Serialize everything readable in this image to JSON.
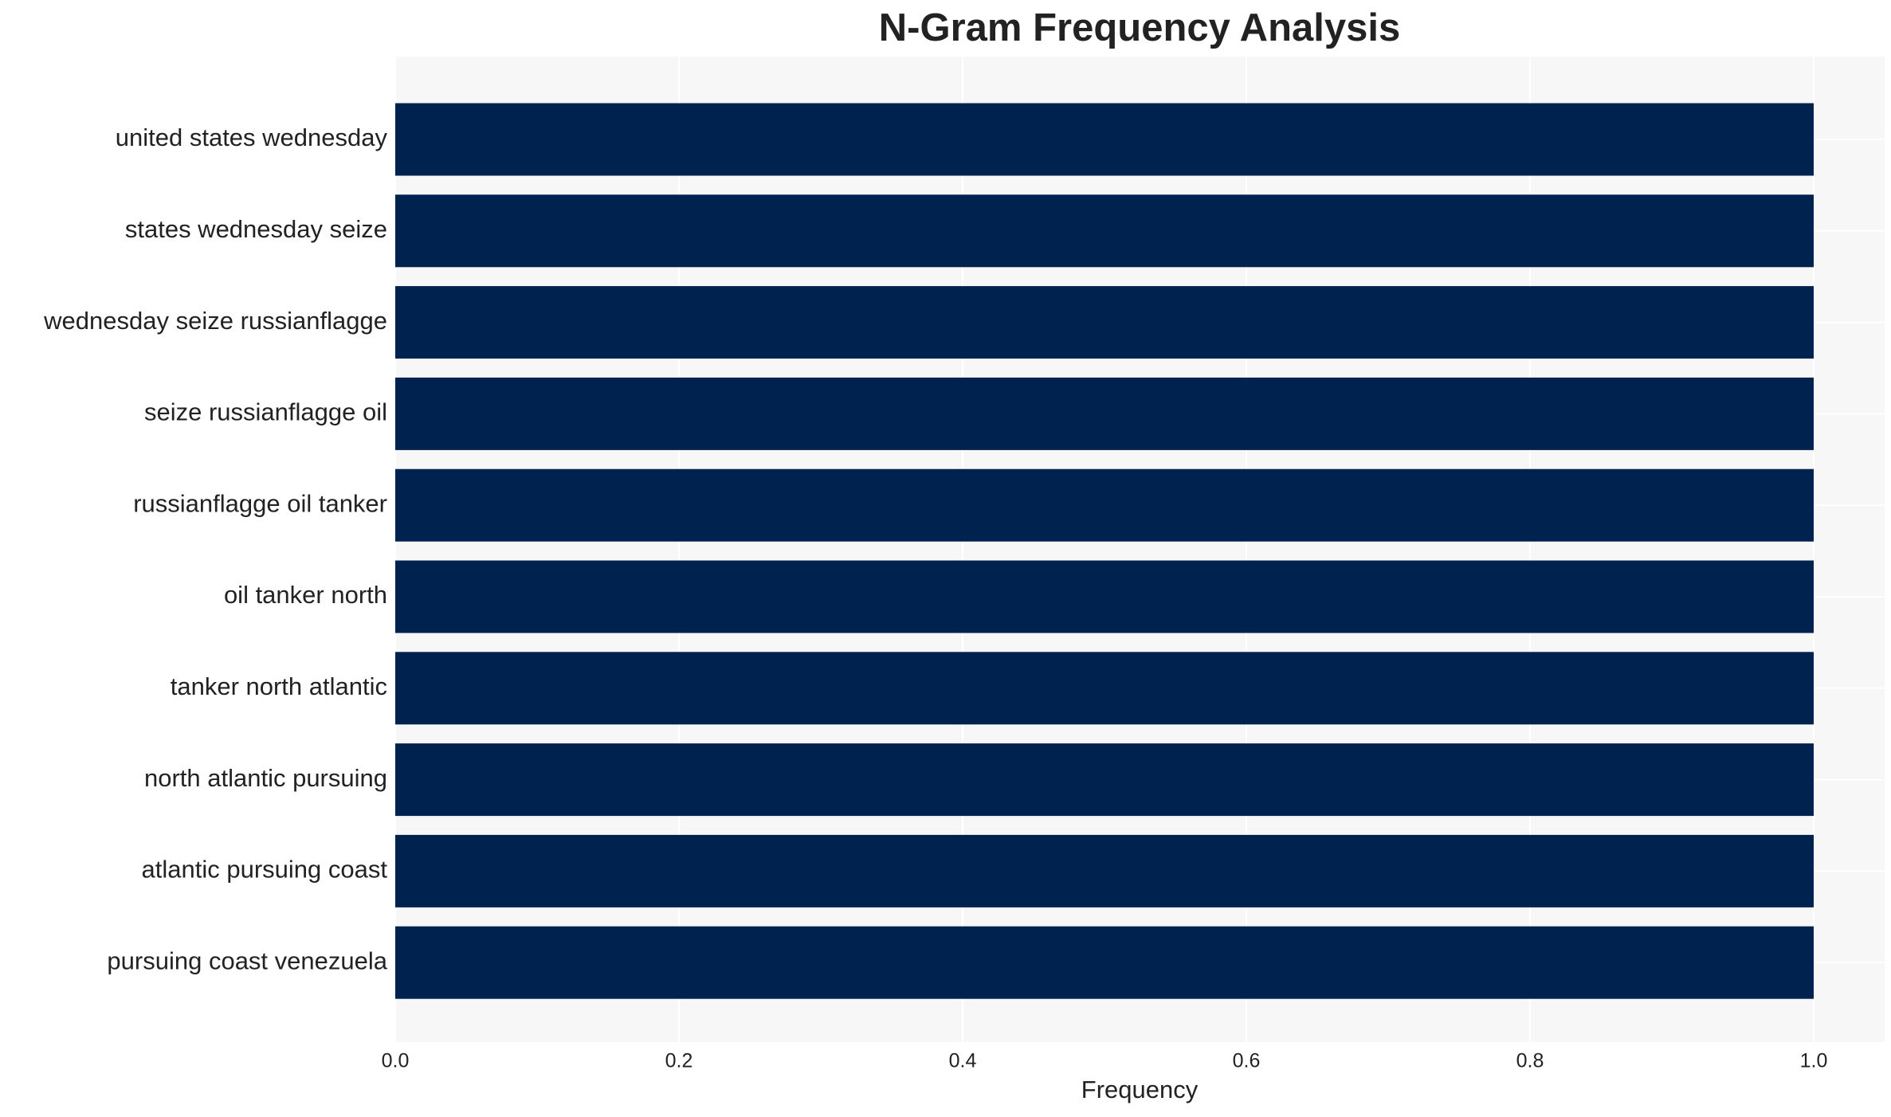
{
  "chart_data": {
    "type": "barh",
    "title": "N-Gram Frequency Analysis",
    "x_label": "Frequency",
    "categories": [
      "united states wednesday",
      "states wednesday seize",
      "wednesday seize russianflagge",
      "seize russianflagge oil",
      "russianflagge oil tanker",
      "oil tanker north",
      "tanker north atlantic",
      "north atlantic pursuing",
      "atlantic pursuing coast",
      "pursuing coast venezuela"
    ],
    "values": [
      1,
      1,
      1,
      1,
      1,
      1,
      1,
      1,
      1,
      1
    ],
    "color": "#00224e",
    "xlim": [
      0,
      1.05
    ],
    "xticks": [
      {
        "value": 0,
        "label": "0.0"
      },
      0.2,
      0.4,
      0.6,
      0.8,
      {
        "value": 1,
        "label": "1.0"
      }
    ],
    "grid": true
  }
}
